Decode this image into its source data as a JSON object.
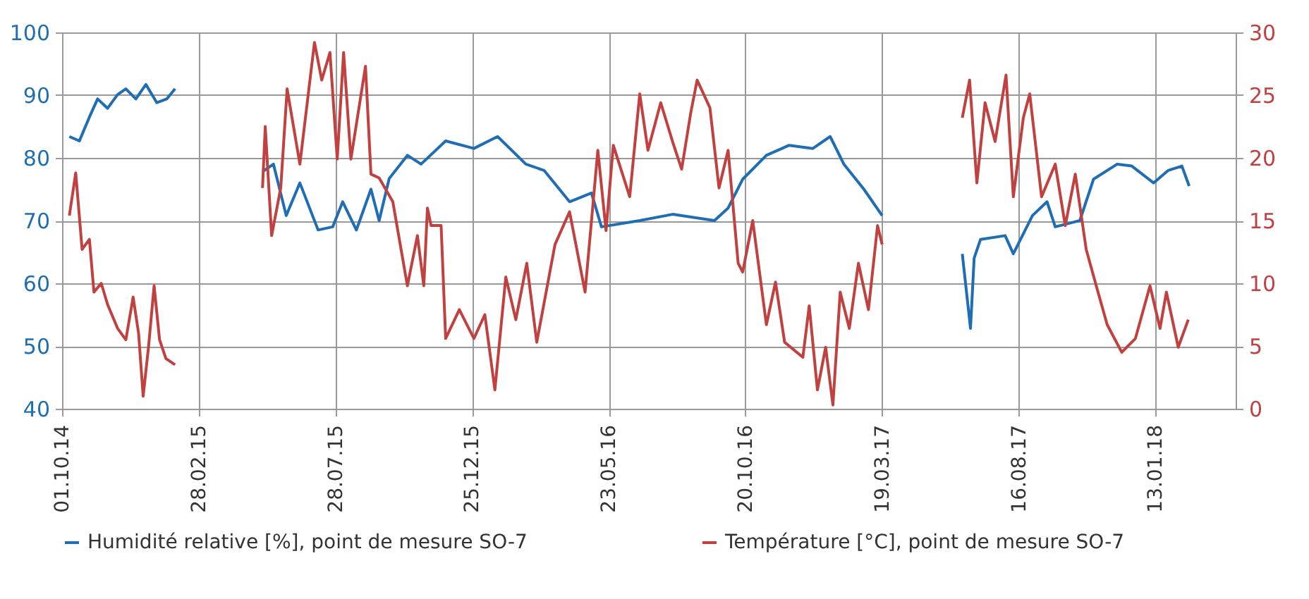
{
  "chart_data": {
    "type": "line",
    "xlim": [
      "2014-10-01",
      "2018-04-11"
    ],
    "xticks": [
      {
        "value": "2014-10-01",
        "label": "01.10.14"
      },
      {
        "value": "2015-02-28",
        "label": "28.02.15"
      },
      {
        "value": "2015-07-28",
        "label": "28.07.15"
      },
      {
        "value": "2015-12-25",
        "label": "25.12.15"
      },
      {
        "value": "2016-05-23",
        "label": "23.05.16"
      },
      {
        "value": "2016-10-20",
        "label": "20.10.16"
      },
      {
        "value": "2017-03-19",
        "label": "19.03.17"
      },
      {
        "value": "2017-08-16",
        "label": "16.08.17"
      },
      {
        "value": "2018-01-13",
        "label": "13.01.18"
      }
    ],
    "ylim": [
      40,
      100
    ],
    "yticks": [
      40,
      50,
      60,
      70,
      80,
      90,
      100
    ],
    "y2lim": [
      0,
      30
    ],
    "y2ticks": [
      0,
      5,
      10,
      15,
      20,
      25,
      30
    ],
    "grid": true,
    "legend": "bottom",
    "series": [
      {
        "name": "Humidité relative [%], point de mesure SO-7",
        "color": "#1f6db3",
        "axis": "y",
        "x": [
          "2014-10-09",
          "2014-10-20",
          "2014-10-31",
          "2014-11-09",
          "2014-11-20",
          "2014-12-01",
          "2014-12-10",
          "2014-12-21",
          "2015-01-01",
          "2015-01-13",
          "2015-01-24",
          "2015-02-02",
          "2015-03-20",
          "2015-05-09",
          "2015-05-21",
          "2015-06-04",
          "2015-06-19",
          "2015-07-09",
          "2015-07-25",
          "2015-08-05",
          "2015-08-20",
          "2015-09-05",
          "2015-09-14",
          "2015-09-25",
          "2015-10-15",
          "2015-10-30",
          "2015-11-26",
          "2015-12-27",
          "2016-01-22",
          "2016-02-22",
          "2016-03-13",
          "2016-04-10",
          "2016-05-04",
          "2016-05-15",
          "2016-06-26",
          "2016-08-01",
          "2016-09-16",
          "2016-10-01",
          "2016-10-17",
          "2016-11-12",
          "2016-12-07",
          "2017-01-02",
          "2017-01-21",
          "2017-02-05",
          "2017-02-27",
          "2017-03-19",
          "2017-04-20",
          "2017-06-15",
          "2017-06-24",
          "2017-06-28",
          "2017-07-05",
          "2017-08-01",
          "2017-08-10",
          "2017-08-31",
          "2017-09-16",
          "2017-09-25",
          "2017-10-22",
          "2017-11-06",
          "2017-12-02",
          "2017-12-18",
          "2018-01-11",
          "2018-01-27",
          "2018-02-11",
          "2018-02-19"
        ],
        "values": [
          83.4,
          82.7,
          86.5,
          89.4,
          87.9,
          90.1,
          91,
          89.4,
          91.7,
          88.8,
          89.4,
          91,
          null,
          77.8,
          79,
          70.8,
          76,
          68.5,
          69,
          73,
          68.5,
          75,
          70,
          76.7,
          80.4,
          79,
          82.7,
          81.5,
          83.4,
          79,
          78,
          73,
          74.4,
          69,
          70,
          71,
          70,
          72,
          76.6,
          80.4,
          82,
          81.5,
          83.4,
          79,
          75,
          70.8,
          null,
          64.7,
          52.8,
          64,
          67,
          67.6,
          64.7,
          70.8,
          73,
          69,
          70,
          76.6,
          79,
          78.7,
          76,
          78,
          78.7,
          75.5
        ]
      },
      {
        "name": "Température [°C], point de mesure SO-7",
        "color": "#c0413f",
        "axis": "y2",
        "x": [
          "2014-10-09",
          "2014-10-16",
          "2014-10-23",
          "2014-10-31",
          "2014-11-05",
          "2014-11-13",
          "2014-11-20",
          "2014-12-01",
          "2014-12-10",
          "2014-12-18",
          "2014-12-24",
          "2014-12-29",
          "2015-01-04",
          "2015-01-10",
          "2015-01-16",
          "2015-01-23",
          "2015-02-02",
          "2015-03-20",
          "2015-05-09",
          "2015-05-12",
          "2015-05-19",
          "2015-05-29",
          "2015-06-05",
          "2015-06-19",
          "2015-07-05",
          "2015-07-13",
          "2015-07-22",
          "2015-07-30",
          "2015-08-06",
          "2015-08-14",
          "2015-08-30",
          "2015-09-05",
          "2015-09-14",
          "2015-09-29",
          "2015-10-15",
          "2015-10-26",
          "2015-11-02",
          "2015-11-06",
          "2015-11-10",
          "2015-11-21",
          "2015-11-26",
          "2015-12-11",
          "2015-12-27",
          "2016-01-08",
          "2016-01-19",
          "2016-01-31",
          "2016-02-11",
          "2016-02-23",
          "2016-03-05",
          "2016-03-25",
          "2016-04-10",
          "2016-04-27",
          "2016-05-11",
          "2016-05-20",
          "2016-05-28",
          "2016-06-15",
          "2016-06-26",
          "2016-07-05",
          "2016-07-19",
          "2016-08-01",
          "2016-08-11",
          "2016-08-21",
          "2016-08-28",
          "2016-09-11",
          "2016-09-21",
          "2016-10-01",
          "2016-10-12",
          "2016-10-17",
          "2016-10-28",
          "2016-11-12",
          "2016-11-22",
          "2016-12-02",
          "2016-12-22",
          "2016-12-29",
          "2017-01-07",
          "2017-01-16",
          "2017-01-24",
          "2017-02-01",
          "2017-02-11",
          "2017-02-21",
          "2017-03-04",
          "2017-03-14",
          "2017-03-19",
          "2017-04-20",
          "2017-06-15",
          "2017-06-23",
          "2017-07-01",
          "2017-07-10",
          "2017-07-21",
          "2017-08-02",
          "2017-08-10",
          "2017-08-21",
          "2017-08-28",
          "2017-09-10",
          "2017-09-25",
          "2017-10-06",
          "2017-10-17",
          "2017-10-29",
          "2017-11-09",
          "2017-11-21",
          "2017-12-07",
          "2017-12-22",
          "2018-01-07",
          "2018-01-18",
          "2018-01-25",
          "2018-02-07",
          "2018-02-18"
        ],
        "values": [
          15.4,
          18.8,
          12.7,
          13.5,
          9.3,
          10,
          8.3,
          6.4,
          5.5,
          8.9,
          6,
          1,
          5,
          9.8,
          5.5,
          4,
          3.5,
          null,
          17.6,
          22.5,
          13.8,
          17.6,
          25.5,
          19.5,
          29.2,
          26.2,
          28.4,
          19.9,
          28.4,
          19.9,
          27.3,
          18.7,
          18.4,
          16.5,
          9.8,
          13.8,
          9.8,
          16,
          14.6,
          14.6,
          5.6,
          7.9,
          5.6,
          7.5,
          1.5,
          10.5,
          7.1,
          11.6,
          5.3,
          13.1,
          15.7,
          9.3,
          20.6,
          14.2,
          21,
          16.9,
          25.1,
          20.6,
          24.4,
          21.3,
          19.1,
          23.6,
          26.2,
          24,
          17.6,
          20.6,
          11.6,
          10.9,
          15,
          6.7,
          10.1,
          5.3,
          4.1,
          8.2,
          1.5,
          4.9,
          0.3,
          9.3,
          6.4,
          11.6,
          7.9,
          14.6,
          13.1,
          null,
          23.2,
          26.2,
          18,
          24.4,
          21.3,
          26.6,
          16.9,
          23.2,
          25.1,
          16.9,
          19.5,
          14.6,
          18.7,
          12.7,
          9.8,
          6.7,
          4.5,
          5.6,
          9.8,
          6.4,
          9.3,
          4.9,
          7.1
        ]
      }
    ]
  }
}
